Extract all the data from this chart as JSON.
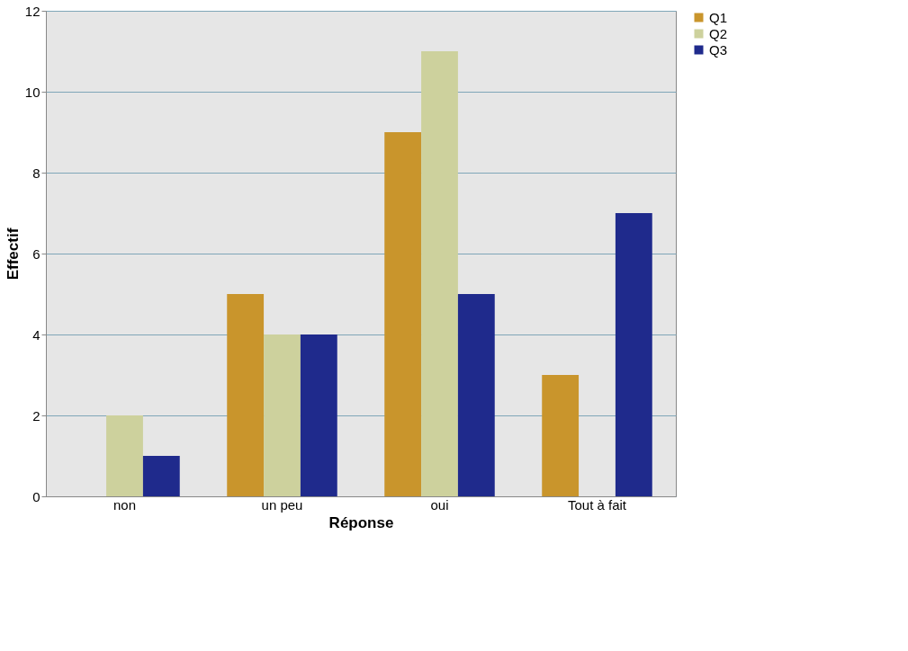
{
  "chart_data": {
    "type": "bar",
    "xlabel": "Réponse",
    "ylabel": "Effectif",
    "categories": [
      "non",
      "un peu",
      "oui",
      "Tout à fait"
    ],
    "series": [
      {
        "name": "Q1",
        "color": "#c9952c",
        "values": [
          0,
          5,
          9,
          3
        ]
      },
      {
        "name": "Q2",
        "color": "#cdd19d",
        "values": [
          2,
          4,
          11,
          0
        ]
      },
      {
        "name": "Q3",
        "color": "#1f2a8c",
        "values": [
          1,
          4,
          5,
          7
        ]
      }
    ],
    "ylim": [
      0,
      12
    ],
    "yticks": [
      0,
      2,
      4,
      6,
      8,
      10,
      12
    ],
    "grid": "y",
    "legend": "right"
  }
}
